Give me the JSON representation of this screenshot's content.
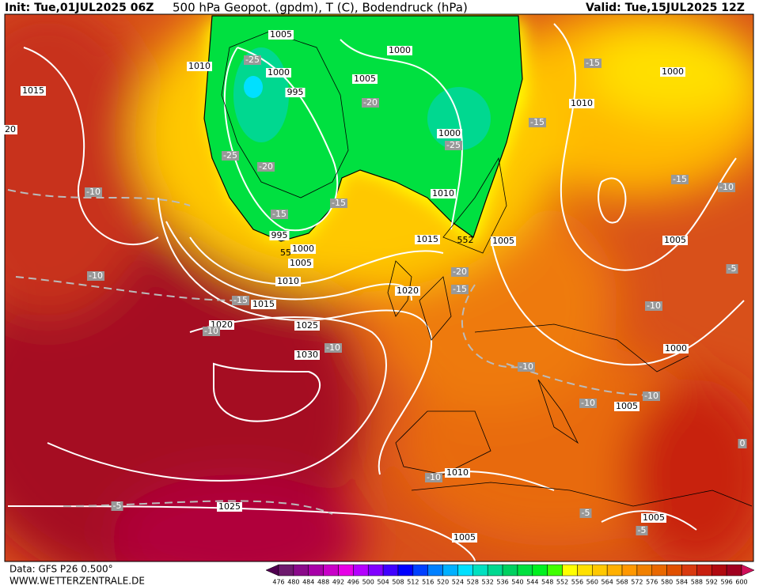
{
  "header": {
    "init": "Init: Tue,01JUL2025 06Z",
    "title": "500 hPa Geopot. (gpdm), T (C), Bodendruck (hPa)",
    "valid": "Valid: Tue,15JUL2025 12Z"
  },
  "pressure_labels": [
    "1005",
    "1000",
    "1010",
    "1015",
    "1000",
    "995",
    "1005",
    "1010",
    "1000",
    "1000",
    "1010",
    "1015",
    "1005",
    "1005",
    "995",
    "1000",
    "1005",
    "1010",
    "1015",
    "1020",
    "1020",
    "1025",
    "1030",
    "1000",
    "1005",
    "1010",
    "1025",
    "1005",
    "1005",
    "20"
  ],
  "geopotential_labels": [
    "552",
    "55"
  ],
  "temperature_labels": [
    "-25",
    "-20",
    "-15",
    "-15",
    "-25",
    "-25",
    "-20",
    "-15",
    "-15",
    "-10",
    "-15",
    "-10",
    "-10",
    "-20",
    "-15",
    "-15",
    "-10",
    "-10",
    "-5",
    "-10",
    "-10",
    "-10",
    "-10",
    "-10",
    "-5",
    "-5",
    "-5",
    "0"
  ],
  "colorbar": {
    "labels": [
      "476",
      "480",
      "484",
      "488",
      "492",
      "496",
      "500",
      "504",
      "508",
      "512",
      "516",
      "520",
      "524",
      "528",
      "532",
      "536",
      "540",
      "544",
      "548",
      "552",
      "556",
      "560",
      "564",
      "568",
      "572",
      "576",
      "580",
      "584",
      "588",
      "592",
      "596",
      "600"
    ],
    "colors": [
      "#500050",
      "#6e1a6e",
      "#8a0a8a",
      "#a800a8",
      "#c800c8",
      "#e600e6",
      "#b400ff",
      "#8000ff",
      "#4000ff",
      "#0000ff",
      "#0040ff",
      "#0080ff",
      "#00b0ff",
      "#00e0ff",
      "#00e0c0",
      "#00d890",
      "#00d060",
      "#00e040",
      "#00f020",
      "#40ff00",
      "#ffff00",
      "#ffe000",
      "#ffc800",
      "#ffb000",
      "#ff9800",
      "#f08000",
      "#e86800",
      "#e05000",
      "#d83a10",
      "#c82010",
      "#b00a10",
      "#a00020",
      "#d0105a"
    ]
  },
  "footer": {
    "data": "Data: GFS P26 0.500°",
    "site": "WWW.WETTERZENTRALE.DE"
  }
}
